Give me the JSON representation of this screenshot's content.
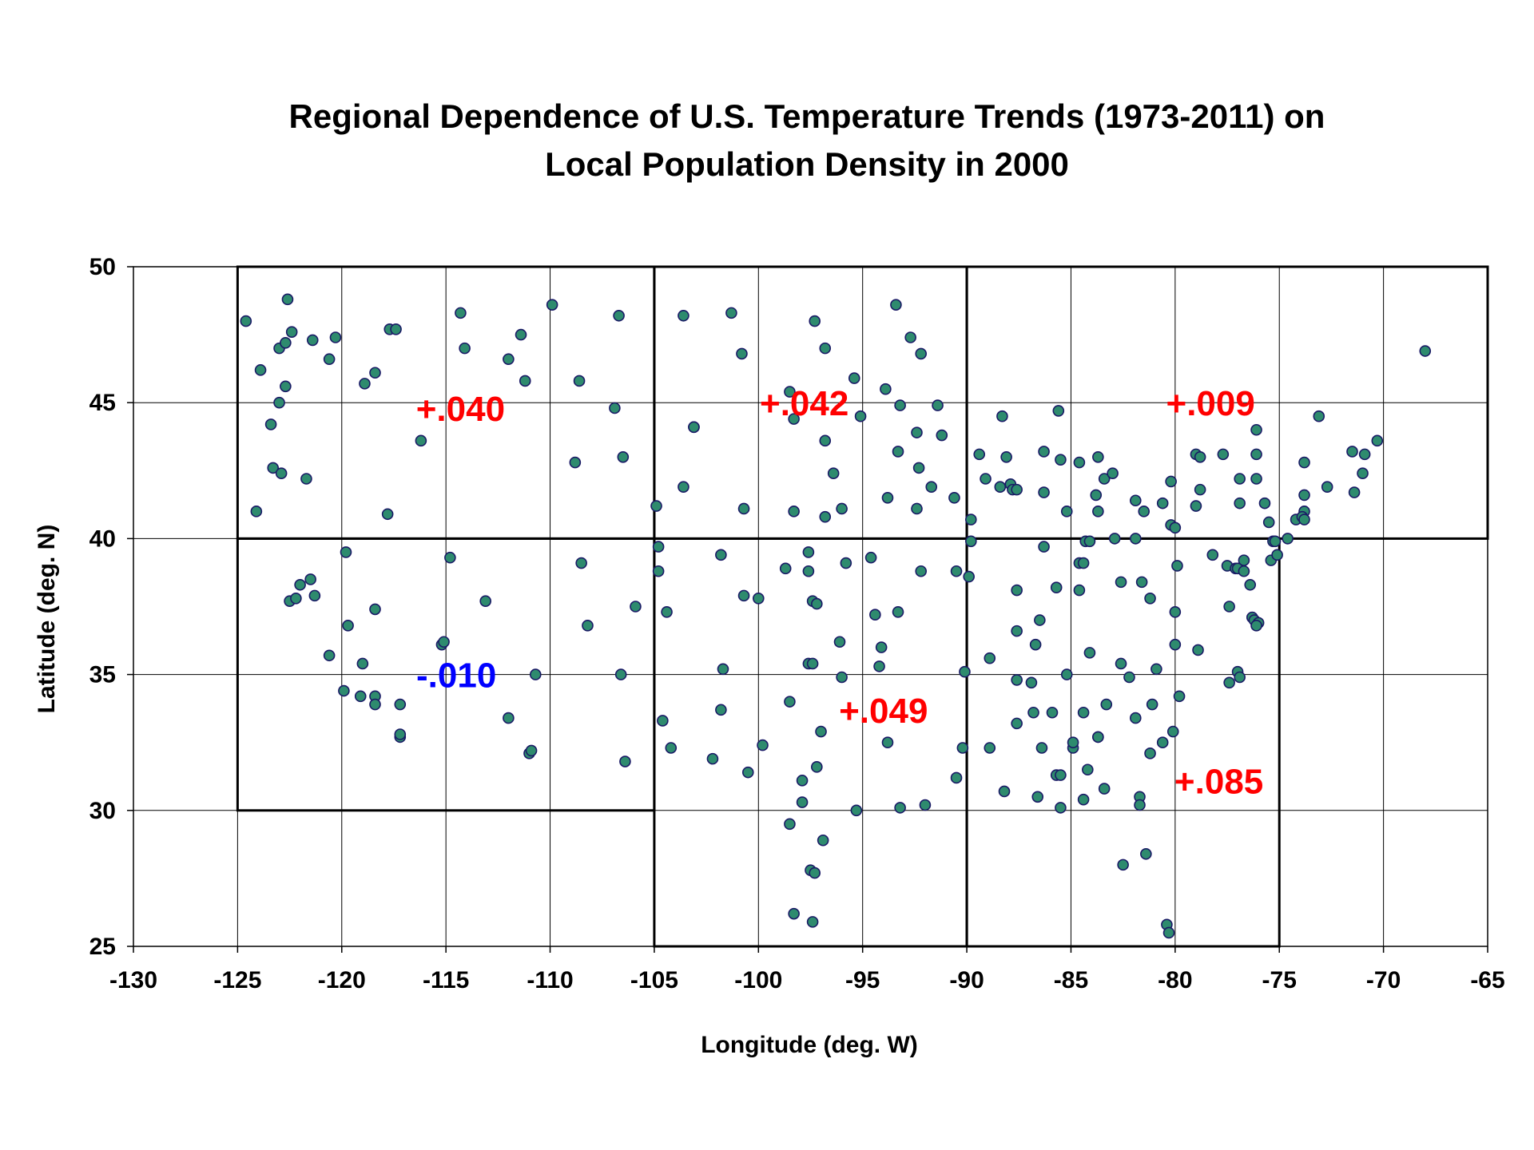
{
  "chart_data": {
    "type": "scatter",
    "title": [
      "Regional Dependence of U.S. Temperature Trends (1973-2011) on",
      "Local Population Density in 2000"
    ],
    "xlabel": "Longitude (deg. W)",
    "ylabel": "Latitude (deg. N)",
    "xlim": [
      -130,
      -65
    ],
    "ylim": [
      25,
      50
    ],
    "xticks": [
      -130,
      -125,
      -120,
      -115,
      -110,
      -105,
      -100,
      -95,
      -90,
      -85,
      -80,
      -75,
      -70,
      -65
    ],
    "yticks": [
      25,
      30,
      35,
      40,
      45,
      50
    ],
    "grid": true,
    "marker_fill": "#2e8b6e",
    "marker_edge": "#1a1a66",
    "regions": [
      {
        "x": [
          -125,
          -105
        ],
        "y": [
          40,
          50
        ]
      },
      {
        "x": [
          -125,
          -105
        ],
        "y": [
          30,
          40
        ]
      },
      {
        "x": [
          -105,
          -90
        ],
        "y": [
          40,
          50
        ]
      },
      {
        "x": [
          -105,
          -90
        ],
        "y": [
          25,
          40
        ]
      },
      {
        "x": [
          -90,
          -65
        ],
        "y": [
          40,
          50
        ]
      },
      {
        "x": [
          -90,
          -75
        ],
        "y": [
          25,
          40
        ]
      }
    ],
    "annotations": [
      {
        "text": "+.040",
        "x": -114.3,
        "y": 44.8,
        "color": "#ff0000"
      },
      {
        "text": "-.010",
        "x": -114.5,
        "y": 35.0,
        "color": "#0000ff"
      },
      {
        "text": "+.042",
        "x": -97.8,
        "y": 45.0,
        "color": "#ff0000"
      },
      {
        "text": "+.049",
        "x": -94.0,
        "y": 33.7,
        "color": "#ff0000"
      },
      {
        "text": "+.009",
        "x": -78.3,
        "y": 45.0,
        "color": "#ff0000"
      },
      {
        "text": "+.085",
        "x": -77.9,
        "y": 31.1,
        "color": "#ff0000"
      }
    ],
    "points": [
      [
        -124.6,
        48.0
      ],
      [
        -123.9,
        46.2
      ],
      [
        -124.1,
        41.0
      ],
      [
        -123.4,
        44.2
      ],
      [
        -123.3,
        42.6
      ],
      [
        -123.0,
        45.0
      ],
      [
        -123.0,
        47.0
      ],
      [
        -122.9,
        42.4
      ],
      [
        -122.7,
        45.6
      ],
      [
        -122.7,
        47.2
      ],
      [
        -122.6,
        48.8
      ],
      [
        -122.4,
        47.6
      ],
      [
        -122.5,
        37.7
      ],
      [
        -122.2,
        37.8
      ],
      [
        -122.0,
        38.3
      ],
      [
        -121.7,
        42.2
      ],
      [
        -121.5,
        38.5
      ],
      [
        -121.4,
        47.3
      ],
      [
        -121.3,
        37.9
      ],
      [
        -120.6,
        46.6
      ],
      [
        -120.6,
        35.7
      ],
      [
        -120.3,
        47.4
      ],
      [
        -119.8,
        39.5
      ],
      [
        -119.7,
        36.8
      ],
      [
        -119.9,
        34.4
      ],
      [
        -119.1,
        34.2
      ],
      [
        -119.0,
        35.4
      ],
      [
        -118.9,
        45.7
      ],
      [
        -118.4,
        46.1
      ],
      [
        -118.4,
        37.4
      ],
      [
        -118.4,
        34.2
      ],
      [
        -118.4,
        33.9
      ],
      [
        -117.8,
        40.9
      ],
      [
        -117.7,
        47.7
      ],
      [
        -117.4,
        47.7
      ],
      [
        -117.2,
        33.9
      ],
      [
        -117.2,
        32.7
      ],
      [
        -117.2,
        32.8
      ],
      [
        -116.2,
        43.6
      ],
      [
        -115.2,
        36.1
      ],
      [
        -115.1,
        36.2
      ],
      [
        -114.8,
        39.3
      ],
      [
        -114.3,
        48.3
      ],
      [
        -114.1,
        47.0
      ],
      [
        -113.1,
        37.7
      ],
      [
        -112.0,
        46.6
      ],
      [
        -112.0,
        33.4
      ],
      [
        -111.4,
        47.5
      ],
      [
        -111.2,
        45.8
      ],
      [
        -111.0,
        32.1
      ],
      [
        -110.9,
        32.2
      ],
      [
        -110.7,
        35.0
      ],
      [
        -109.9,
        48.6
      ],
      [
        -108.8,
        42.8
      ],
      [
        -108.6,
        45.8
      ],
      [
        -108.5,
        39.1
      ],
      [
        -108.2,
        36.8
      ],
      [
        -106.9,
        44.8
      ],
      [
        -106.7,
        48.2
      ],
      [
        -106.6,
        35.0
      ],
      [
        -106.5,
        43.0
      ],
      [
        -106.4,
        31.8
      ],
      [
        -105.9,
        37.5
      ],
      [
        -104.9,
        41.2
      ],
      [
        -104.8,
        39.7
      ],
      [
        -104.8,
        38.8
      ],
      [
        -104.6,
        33.3
      ],
      [
        -104.4,
        37.3
      ],
      [
        -104.2,
        32.3
      ],
      [
        -103.6,
        48.2
      ],
      [
        -103.6,
        41.9
      ],
      [
        -103.1,
        44.1
      ],
      [
        -103.1,
        44.1
      ],
      [
        -102.2,
        31.9
      ],
      [
        -101.8,
        39.4
      ],
      [
        -101.8,
        33.7
      ],
      [
        -101.7,
        35.2
      ],
      [
        -101.3,
        48.3
      ],
      [
        -100.8,
        46.8
      ],
      [
        -100.7,
        41.1
      ],
      [
        -100.7,
        37.9
      ],
      [
        -100.5,
        31.4
      ],
      [
        -99.8,
        32.4
      ],
      [
        -100.0,
        37.8
      ],
      [
        -98.7,
        38.9
      ],
      [
        -98.5,
        45.4
      ],
      [
        -98.5,
        34.0
      ],
      [
        -98.5,
        29.5
      ],
      [
        -98.3,
        44.4
      ],
      [
        -98.3,
        41.0
      ],
      [
        -98.3,
        26.2
      ],
      [
        -97.9,
        31.1
      ],
      [
        -97.9,
        30.3
      ],
      [
        -97.6,
        39.5
      ],
      [
        -97.6,
        38.8
      ],
      [
        -97.6,
        35.4
      ],
      [
        -97.5,
        27.8
      ],
      [
        -97.4,
        25.9
      ],
      [
        -97.4,
        37.7
      ],
      [
        -97.3,
        48.0
      ],
      [
        -97.4,
        35.4
      ],
      [
        -97.3,
        27.7
      ],
      [
        -97.2,
        37.6
      ],
      [
        -97.2,
        31.6
      ],
      [
        -97.0,
        32.9
      ],
      [
        -96.8,
        47.0
      ],
      [
        -96.8,
        43.6
      ],
      [
        -96.8,
        40.8
      ],
      [
        -96.9,
        28.9
      ],
      [
        -96.4,
        42.4
      ],
      [
        -96.0,
        41.1
      ],
      [
        -96.1,
        36.2
      ],
      [
        -96.0,
        34.9
      ],
      [
        -95.8,
        39.1
      ],
      [
        -95.4,
        45.9
      ],
      [
        -95.3,
        30.0
      ],
      [
        -95.1,
        44.5
      ],
      [
        -94.6,
        39.3
      ],
      [
        -94.4,
        37.2
      ],
      [
        -94.2,
        35.3
      ],
      [
        -94.1,
        36.0
      ],
      [
        -93.9,
        45.5
      ],
      [
        -93.8,
        41.5
      ],
      [
        -93.8,
        32.5
      ],
      [
        -93.4,
        48.6
      ],
      [
        -93.3,
        43.2
      ],
      [
        -93.2,
        44.9
      ],
      [
        -93.3,
        37.3
      ],
      [
        -93.2,
        30.1
      ],
      [
        -92.7,
        47.4
      ],
      [
        -92.4,
        43.9
      ],
      [
        -92.3,
        42.6
      ],
      [
        -92.4,
        41.1
      ],
      [
        -92.2,
        46.8
      ],
      [
        -92.2,
        38.8
      ],
      [
        -92.0,
        30.2
      ],
      [
        -91.7,
        41.9
      ],
      [
        -91.4,
        44.9
      ],
      [
        -91.2,
        43.8
      ],
      [
        -90.6,
        41.5
      ],
      [
        -90.5,
        38.8
      ],
      [
        -90.5,
        31.2
      ],
      [
        -90.2,
        32.3
      ],
      [
        -90.1,
        35.1
      ],
      [
        -89.9,
        38.6
      ],
      [
        -89.8,
        40.7
      ],
      [
        -89.8,
        39.9
      ],
      [
        -89.4,
        43.1
      ],
      [
        -89.1,
        42.2
      ],
      [
        -88.9,
        35.6
      ],
      [
        -88.9,
        32.3
      ],
      [
        -88.3,
        44.5
      ],
      [
        -88.4,
        41.9
      ],
      [
        -88.2,
        30.7
      ],
      [
        -88.1,
        43.0
      ],
      [
        -87.9,
        42.0
      ],
      [
        -87.8,
        41.8
      ],
      [
        -87.6,
        41.8
      ],
      [
        -87.6,
        38.1
      ],
      [
        -87.6,
        36.6
      ],
      [
        -87.6,
        34.8
      ],
      [
        -87.6,
        33.2
      ],
      [
        -86.9,
        34.7
      ],
      [
        -86.8,
        33.6
      ],
      [
        -86.7,
        36.1
      ],
      [
        -86.6,
        30.5
      ],
      [
        -86.5,
        37.0
      ],
      [
        -86.4,
        32.3
      ],
      [
        -86.3,
        43.2
      ],
      [
        -86.3,
        41.7
      ],
      [
        -86.3,
        39.7
      ],
      [
        -85.9,
        33.6
      ],
      [
        -85.7,
        38.2
      ],
      [
        -85.7,
        31.3
      ],
      [
        -85.6,
        44.7
      ],
      [
        -85.5,
        42.9
      ],
      [
        -85.5,
        31.3
      ],
      [
        -85.5,
        30.1
      ],
      [
        -85.2,
        41.0
      ],
      [
        -85.2,
        35.0
      ],
      [
        -84.9,
        32.3
      ],
      [
        -84.9,
        32.5
      ],
      [
        -84.6,
        42.8
      ],
      [
        -84.6,
        39.1
      ],
      [
        -84.6,
        38.1
      ],
      [
        -84.4,
        39.1
      ],
      [
        -84.4,
        33.6
      ],
      [
        -84.3,
        39.9
      ],
      [
        -84.2,
        31.5
      ],
      [
        -84.1,
        39.9
      ],
      [
        -84.1,
        35.8
      ],
      [
        -84.4,
        30.4
      ],
      [
        -83.7,
        43.0
      ],
      [
        -83.8,
        41.6
      ],
      [
        -83.7,
        41.0
      ],
      [
        -83.7,
        32.7
      ],
      [
        -83.7,
        32.7
      ],
      [
        -83.4,
        42.2
      ],
      [
        -83.4,
        30.8
      ],
      [
        -83.3,
        33.9
      ],
      [
        -83.0,
        42.4
      ],
      [
        -82.9,
        40.0
      ],
      [
        -82.6,
        35.4
      ],
      [
        -82.6,
        38.4
      ],
      [
        -82.5,
        28.0
      ],
      [
        -82.2,
        34.9
      ],
      [
        -81.9,
        41.4
      ],
      [
        -81.9,
        40.0
      ],
      [
        -81.9,
        33.4
      ],
      [
        -81.7,
        30.5
      ],
      [
        -81.7,
        30.2
      ],
      [
        -81.6,
        38.4
      ],
      [
        -81.5,
        41.0
      ],
      [
        -81.4,
        28.4
      ],
      [
        -81.2,
        37.8
      ],
      [
        -81.2,
        32.1
      ],
      [
        -81.1,
        33.9
      ],
      [
        -80.9,
        35.2
      ],
      [
        -80.6,
        41.3
      ],
      [
        -80.6,
        32.5
      ],
      [
        -80.4,
        25.8
      ],
      [
        -80.3,
        25.5
      ],
      [
        -80.2,
        42.1
      ],
      [
        -80.2,
        40.5
      ],
      [
        -80.1,
        32.9
      ],
      [
        -80.0,
        40.4
      ],
      [
        -80.0,
        37.3
      ],
      [
        -80.0,
        36.1
      ],
      [
        -79.9,
        39.0
      ],
      [
        -79.8,
        34.2
      ],
      [
        -79.0,
        43.1
      ],
      [
        -79.0,
        41.2
      ],
      [
        -78.8,
        43.0
      ],
      [
        -78.8,
        41.8
      ],
      [
        -78.9,
        35.9
      ],
      [
        -78.2,
        39.4
      ],
      [
        -77.7,
        43.1
      ],
      [
        -77.5,
        39.0
      ],
      [
        -77.4,
        37.5
      ],
      [
        -77.4,
        34.7
      ],
      [
        -77.1,
        38.9
      ],
      [
        -77.0,
        38.9
      ],
      [
        -77.0,
        35.1
      ],
      [
        -76.9,
        42.2
      ],
      [
        -76.9,
        41.3
      ],
      [
        -76.9,
        34.9
      ],
      [
        -76.7,
        38.8
      ],
      [
        -76.7,
        39.2
      ],
      [
        -76.4,
        38.3
      ],
      [
        -76.3,
        37.1
      ],
      [
        -76.3,
        37.1
      ],
      [
        -76.2,
        37.0
      ],
      [
        -76.1,
        44.0
      ],
      [
        -76.1,
        43.1
      ],
      [
        -76.1,
        42.2
      ],
      [
        -76.0,
        36.9
      ],
      [
        -76.1,
        36.8
      ],
      [
        -75.7,
        41.3
      ],
      [
        -75.5,
        40.6
      ],
      [
        -75.4,
        39.2
      ],
      [
        -75.3,
        39.9
      ],
      [
        -75.2,
        39.9
      ],
      [
        -75.1,
        39.4
      ],
      [
        -74.6,
        40.0
      ],
      [
        -74.2,
        40.7
      ],
      [
        -73.8,
        42.8
      ],
      [
        -73.8,
        41.6
      ],
      [
        -73.8,
        41.0
      ],
      [
        -73.9,
        40.8
      ],
      [
        -73.8,
        40.7
      ],
      [
        -73.1,
        44.5
      ],
      [
        -72.7,
        41.9
      ],
      [
        -71.5,
        43.2
      ],
      [
        -71.4,
        41.7
      ],
      [
        -71.0,
        42.4
      ],
      [
        -70.9,
        43.1
      ],
      [
        -70.3,
        43.6
      ],
      [
        -68.0,
        46.9
      ]
    ]
  }
}
